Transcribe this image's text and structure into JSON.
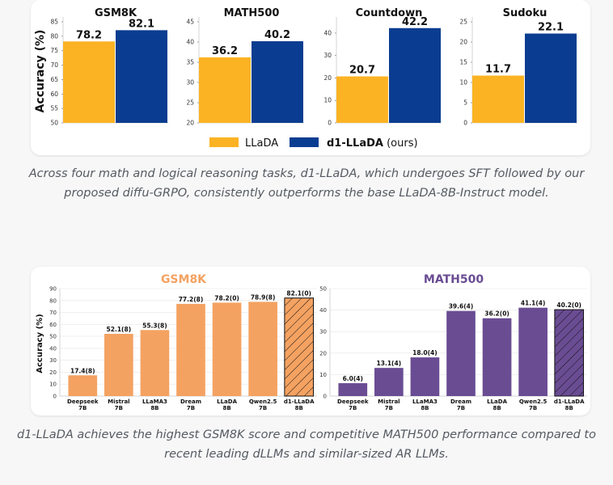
{
  "top_charts": {
    "ylabel": "Accuracy (%)",
    "colors": {
      "base": "#fbb324",
      "ours": "#0a3d91"
    },
    "legend": {
      "base": "LLaDA",
      "ours_bold": "d1-LLaDA",
      "ours_suffix": " (ours)"
    },
    "panels": [
      {
        "title": "GSM8K",
        "ylim": [
          50,
          85
        ],
        "ticks": [
          50,
          55,
          60,
          65,
          70,
          75,
          80,
          85
        ],
        "values": [
          78.2,
          82.1
        ],
        "labels": [
          "78.2",
          "82.1"
        ]
      },
      {
        "title": "MATH500",
        "ylim": [
          20,
          45
        ],
        "ticks": [
          20,
          25,
          30,
          35,
          40,
          45
        ],
        "values": [
          36.2,
          40.2
        ],
        "labels": [
          "36.2",
          "40.2"
        ]
      },
      {
        "title": "Countdown",
        "ylim": [
          0,
          45
        ],
        "ticks": [
          0,
          10,
          20,
          30,
          40
        ],
        "values": [
          20.7,
          42.2
        ],
        "labels": [
          "20.7",
          "42.2"
        ]
      },
      {
        "title": "Sudoku",
        "ylim": [
          0,
          25
        ],
        "ticks": [
          0,
          5,
          10,
          15,
          20,
          25
        ],
        "values": [
          11.7,
          22.1
        ],
        "labels": [
          "11.7",
          "22.1"
        ]
      }
    ]
  },
  "caption1": "Across four math and logical reasoning tasks, d1-LLaDA, which undergoes SFT followed by our proposed diffu-GRPO, consistently outperforms the base LLaDA-8B-Instruct model.",
  "bottom_charts": {
    "ylabel": "Accuracy (%)",
    "categories": [
      [
        "Deepseek",
        "7B"
      ],
      [
        "Mistral",
        "7B"
      ],
      [
        "LLaMA3",
        "8B"
      ],
      [
        "Dream",
        "7B"
      ],
      [
        "LLaDA",
        "8B"
      ],
      [
        "Qwen2.5",
        "7B"
      ],
      [
        "d1-LLaDA",
        "8B"
      ]
    ],
    "panels": [
      {
        "title": "GSM8K",
        "color": "#f4a261",
        "title_color": "#f4a261",
        "ylim": [
          0,
          90
        ],
        "ticks": [
          0,
          10,
          20,
          30,
          40,
          50,
          60,
          70,
          80,
          90
        ],
        "values": [
          17.4,
          52.1,
          55.3,
          77.2,
          78.2,
          78.9,
          82.1
        ],
        "labels": [
          "17.4(8)",
          "52.1(8)",
          "55.3(8)",
          "77.2(8)",
          "78.2(0)",
          "78.9(8)",
          "82.1(0)"
        ]
      },
      {
        "title": "MATH500",
        "color": "#6a4c93",
        "title_color": "#6a4c93",
        "ylim": [
          0,
          50
        ],
        "ticks": [
          0,
          10,
          20,
          30,
          40,
          50
        ],
        "values": [
          6.0,
          13.1,
          18.0,
          39.6,
          36.2,
          41.1,
          40.2
        ],
        "labels": [
          "6.0(4)",
          "13.1(4)",
          "18.0(4)",
          "39.6(4)",
          "36.2(0)",
          "41.1(4)",
          "40.2(0)"
        ]
      }
    ]
  },
  "caption2": "d1-LLaDA achieves the highest GSM8K score and competitive MATH500 performance compared to recent leading dLLMs and similar-sized AR LLMs.",
  "chart_data": [
    {
      "type": "bar",
      "title": "GSM8K",
      "categories": [
        "LLaDA",
        "d1-LLaDA (ours)"
      ],
      "values": [
        78.2,
        82.1
      ],
      "ylabel": "Accuracy (%)",
      "ylim": [
        50,
        85
      ]
    },
    {
      "type": "bar",
      "title": "MATH500",
      "categories": [
        "LLaDA",
        "d1-LLaDA (ours)"
      ],
      "values": [
        36.2,
        40.2
      ],
      "ylim": [
        20,
        45
      ]
    },
    {
      "type": "bar",
      "title": "Countdown",
      "categories": [
        "LLaDA",
        "d1-LLaDA (ours)"
      ],
      "values": [
        20.7,
        42.2
      ],
      "ylim": [
        0,
        45
      ]
    },
    {
      "type": "bar",
      "title": "Sudoku",
      "categories": [
        "LLaDA",
        "d1-LLaDA (ours)"
      ],
      "values": [
        11.7,
        22.1
      ],
      "ylim": [
        0,
        25
      ]
    },
    {
      "type": "bar",
      "title": "GSM8K",
      "categories": [
        "Deepseek 7B",
        "Mistral 7B",
        "LLaMA3 8B",
        "Dream 7B",
        "LLaDA 8B",
        "Qwen2.5 7B",
        "d1-LLaDA 8B"
      ],
      "values": [
        17.4,
        52.1,
        55.3,
        77.2,
        78.2,
        78.9,
        82.1
      ],
      "ylabel": "Accuracy (%)",
      "ylim": [
        0,
        90
      ]
    },
    {
      "type": "bar",
      "title": "MATH500",
      "categories": [
        "Deepseek 7B",
        "Mistral 7B",
        "LLaMA3 8B",
        "Dream 7B",
        "LLaDA 8B",
        "Qwen2.5 7B",
        "d1-LLaDA 8B"
      ],
      "values": [
        6.0,
        13.1,
        18.0,
        39.6,
        36.2,
        41.1,
        40.2
      ],
      "ylim": [
        0,
        50
      ]
    }
  ]
}
